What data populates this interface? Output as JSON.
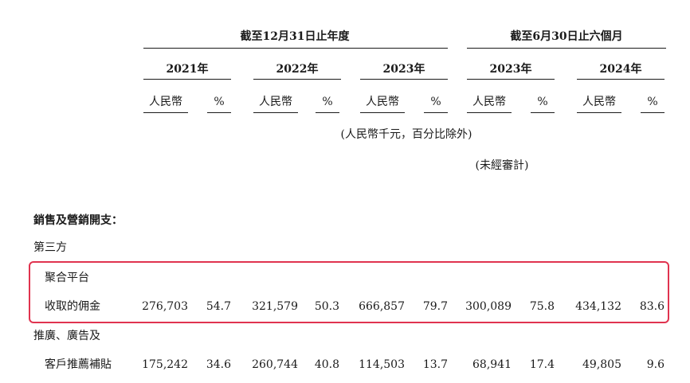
{
  "header": {
    "group_fy": "截至12月31日止年度",
    "group_hy": "截至6月30日止六個月",
    "years": [
      "2021年",
      "2022年",
      "2023年",
      "2023年",
      "2024年"
    ],
    "currency": "人民幣",
    "percent": "%",
    "unit_note": "(人民幣千元，百分比除外)",
    "unaudited_note": "(未經審計)"
  },
  "section": {
    "title": "銷售及營銷開支：",
    "subheading": "第三方"
  },
  "rows": [
    {
      "label_line1": "聚合平台",
      "label_line2": "收取的佣金",
      "values": [
        "276,703",
        "54.7",
        "321,579",
        "50.3",
        "666,857",
        "79.7",
        "300,089",
        "75.8",
        "434,132",
        "83.6"
      ]
    },
    {
      "label_line1": "推廣、廣告及",
      "label_line2": "客戶推薦補貼",
      "values": [
        "175,242",
        "34.6",
        "260,744",
        "40.8",
        "114,503",
        "13.7",
        "68,941",
        "17.4",
        "49,805",
        "9.6"
      ]
    }
  ],
  "colors": {
    "highlight_border": "#e0334f",
    "text": "#1a1a1a"
  }
}
